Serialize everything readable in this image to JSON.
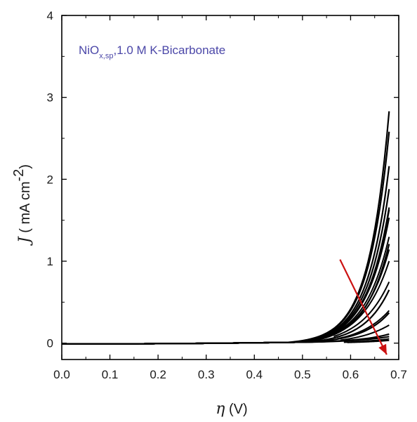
{
  "chart_data": {
    "type": "line",
    "annotation": {
      "main": "NiO",
      "subscript": "x,sp",
      "rest": ",1.0 M K-Bicarbonate",
      "color": "#4b47a8"
    },
    "xlabel": {
      "symbol": "η",
      "unit": " (V)"
    },
    "ylabel": {
      "symbol": "J",
      "unit": " ( mA cm",
      "superscript": "-2",
      "close": ")"
    },
    "xlim": [
      0.0,
      0.7
    ],
    "ylim": [
      -0.2,
      4.0
    ],
    "xticks": [
      "0.0",
      "0.1",
      "0.2",
      "0.3",
      "0.4",
      "0.5",
      "0.6",
      "0.7"
    ],
    "yticks": [
      "0",
      "1",
      "2",
      "3",
      "4"
    ],
    "x_range": [
      0.0,
      0.68
    ],
    "line_color": "#000000",
    "series": [
      {
        "values_at_x_end": 2.8
      },
      {
        "values_at_x_end": 2.55
      },
      {
        "values_at_x_end": 2.13
      },
      {
        "values_at_x_end": 1.85
      },
      {
        "values_at_x_end": 1.6
      },
      {
        "values_at_x_end": 1.18
      },
      {
        "values_at_x_end": 0.62
      },
      {
        "values_at_x_end": 0.34
      },
      {
        "values_at_x_end": 0.08
      },
      {
        "values_at_x_end": 0.05
      }
    ],
    "trend_arrow": {
      "from": [
        0.578,
        1.02
      ],
      "to": [
        0.675,
        -0.14
      ],
      "color": "#cc1111"
    },
    "grid": false,
    "legend": "none"
  }
}
